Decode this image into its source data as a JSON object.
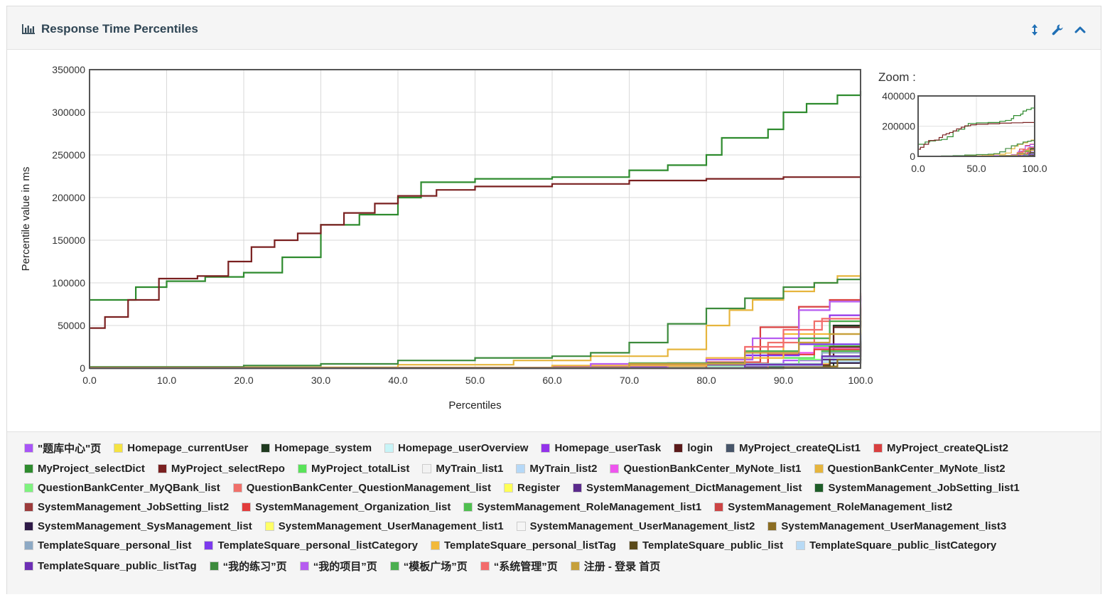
{
  "panel": {
    "title": "Response Time Percentiles",
    "icons": {
      "title": "bar-chart-icon",
      "tools": [
        "vertical-arrows-icon",
        "wrench-icon",
        "chevron-up-icon"
      ]
    }
  },
  "zoom": {
    "label": "Zoom :",
    "yticks": [
      "400000",
      "200000",
      "0"
    ],
    "xticks": [
      "0.0",
      "50.0",
      "100.0"
    ]
  },
  "chart_data": {
    "type": "line",
    "xlabel": "Percentiles",
    "ylabel": "Percentile value in ms",
    "xlim": [
      0,
      100
    ],
    "ylim": [
      0,
      350000
    ],
    "xticks": [
      "0.0",
      "10.0",
      "20.0",
      "30.0",
      "40.0",
      "50.0",
      "60.0",
      "70.0",
      "80.0",
      "90.0",
      "100.0"
    ],
    "yticks": [
      "0",
      "50000",
      "100000",
      "150000",
      "200000",
      "250000",
      "300000",
      "350000"
    ],
    "grid": true,
    "legend_position": "bottom",
    "series": [
      {
        "name": "\"题库中心\"页",
        "color": "#a855f7",
        "points": [
          [
            0,
            500
          ],
          [
            60,
            1500
          ],
          [
            80,
            4000
          ],
          [
            90,
            9000
          ],
          [
            95,
            14000
          ],
          [
            100,
            18000
          ]
        ]
      },
      {
        "name": "Homepage_currentUser",
        "color": "#f5e342",
        "points": [
          [
            0,
            300
          ],
          [
            70,
            1000
          ],
          [
            88,
            3000
          ],
          [
            95,
            6000
          ],
          [
            100,
            9000
          ]
        ]
      },
      {
        "name": "Homepage_system",
        "color": "#1f3a1f",
        "points": [
          [
            0,
            0
          ],
          [
            80,
            500
          ],
          [
            95,
            2000
          ],
          [
            96.5,
            50000
          ],
          [
            100,
            55000
          ]
        ]
      },
      {
        "name": "Homepage_userOverview",
        "color": "#c7f4f7",
        "points": [
          [
            0,
            300
          ],
          [
            80,
            1500
          ],
          [
            95,
            8000
          ],
          [
            100,
            12000
          ]
        ]
      },
      {
        "name": "Homepage_userTask",
        "color": "#9333ea",
        "points": [
          [
            0,
            500
          ],
          [
            60,
            2000
          ],
          [
            75,
            6000
          ],
          [
            85,
            15000
          ],
          [
            92,
            35000
          ],
          [
            96,
            62000
          ],
          [
            100,
            85000
          ]
        ]
      },
      {
        "name": "login",
        "color": "#5b1a1a",
        "points": [
          [
            0,
            0
          ],
          [
            85,
            2000
          ],
          [
            95,
            12000
          ],
          [
            96.5,
            48000
          ],
          [
            100,
            56000
          ]
        ]
      },
      {
        "name": "MyProject_createQList1",
        "color": "#475569",
        "points": [
          [
            0,
            0
          ],
          [
            85,
            3000
          ],
          [
            95,
            14000
          ],
          [
            100,
            40000
          ]
        ]
      },
      {
        "name": "MyProject_createQList2",
        "color": "#d94040",
        "points": [
          [
            0,
            200
          ],
          [
            70,
            3000
          ],
          [
            80,
            7000
          ],
          [
            87,
            48000
          ],
          [
            92,
            72000
          ],
          [
            96,
            80000
          ],
          [
            100,
            88000
          ]
        ]
      },
      {
        "name": "MyProject_selectDict",
        "color": "#2e8b2e",
        "points": [
          [
            0,
            80000
          ],
          [
            3,
            80000
          ],
          [
            6,
            95000
          ],
          [
            10,
            102000
          ],
          [
            15,
            107000
          ],
          [
            20,
            112000
          ],
          [
            25,
            130000
          ],
          [
            30,
            168000
          ],
          [
            35,
            180000
          ],
          [
            40,
            200000
          ],
          [
            43,
            218000
          ],
          [
            50,
            222000
          ],
          [
            60,
            224000
          ],
          [
            70,
            232000
          ],
          [
            75,
            238000
          ],
          [
            80,
            250000
          ],
          [
            82,
            270000
          ],
          [
            88,
            280000
          ],
          [
            90,
            300000
          ],
          [
            93,
            310000
          ],
          [
            97,
            320000
          ],
          [
            100,
            325000
          ]
        ]
      },
      {
        "name": "MyProject_selectRepo",
        "color": "#7a2020",
        "points": [
          [
            0,
            47000
          ],
          [
            2,
            60000
          ],
          [
            5,
            80000
          ],
          [
            9,
            105000
          ],
          [
            14,
            108000
          ],
          [
            18,
            125000
          ],
          [
            21,
            142000
          ],
          [
            24,
            150000
          ],
          [
            27,
            158000
          ],
          [
            30,
            168000
          ],
          [
            33,
            182000
          ],
          [
            37,
            193000
          ],
          [
            40,
            202000
          ],
          [
            45,
            209000
          ],
          [
            50,
            213000
          ],
          [
            60,
            216000
          ],
          [
            70,
            220000
          ],
          [
            80,
            222000
          ],
          [
            90,
            224000
          ],
          [
            100,
            225000
          ]
        ]
      },
      {
        "name": "MyProject_totalList",
        "color": "#59e359",
        "points": [
          [
            0,
            300
          ],
          [
            75,
            3000
          ],
          [
            88,
            12000
          ],
          [
            94,
            26000
          ],
          [
            100,
            45000
          ]
        ]
      },
      {
        "name": "MyTrain_list1",
        "color": "#f2f2f2",
        "points": [
          [
            0,
            200
          ],
          [
            90,
            2000
          ],
          [
            100,
            5000
          ]
        ]
      },
      {
        "name": "MyTrain_list2",
        "color": "#b5d8f7",
        "points": [
          [
            0,
            200
          ],
          [
            85,
            2000
          ],
          [
            95,
            7000
          ],
          [
            100,
            12000
          ]
        ]
      },
      {
        "name": "QuestionBankCenter_MyNote_list1",
        "color": "#ee55ee",
        "points": [
          [
            0,
            300
          ],
          [
            75,
            4000
          ],
          [
            88,
            18000
          ],
          [
            94,
            24000
          ],
          [
            100,
            30000
          ]
        ]
      },
      {
        "name": "QuestionBankCenter_MyNote_list2",
        "color": "#e6b53d",
        "points": [
          [
            0,
            1000
          ],
          [
            40,
            4000
          ],
          [
            55,
            9000
          ],
          [
            65,
            14000
          ],
          [
            75,
            22000
          ],
          [
            80,
            50000
          ],
          [
            83,
            68000
          ],
          [
            86,
            80000
          ],
          [
            90,
            90000
          ],
          [
            94,
            100000
          ],
          [
            97,
            108000
          ],
          [
            100,
            112000
          ]
        ]
      },
      {
        "name": "QuestionBankCenter_MyQBank_list",
        "color": "#7ef27e",
        "points": [
          [
            0,
            200
          ],
          [
            80,
            3000
          ],
          [
            92,
            10000
          ],
          [
            100,
            20000
          ]
        ]
      },
      {
        "name": "QuestionBankCenter_QuestionManagement_list",
        "color": "#f0706a",
        "points": [
          [
            0,
            300
          ],
          [
            80,
            6000
          ],
          [
            88,
            30000
          ],
          [
            94,
            55000
          ],
          [
            100,
            72000
          ]
        ]
      },
      {
        "name": "Register",
        "color": "#ffff55",
        "points": [
          [
            0,
            0
          ],
          [
            90,
            1000
          ],
          [
            100,
            3000
          ]
        ]
      },
      {
        "name": "SystemManagement_DictManagement_list",
        "color": "#5b2a8c",
        "points": [
          [
            0,
            0
          ],
          [
            85,
            2000
          ],
          [
            95,
            10000
          ],
          [
            100,
            22000
          ]
        ]
      },
      {
        "name": "SystemManagement_JobSetting_list1",
        "color": "#1e5d28",
        "points": [
          [
            0,
            0
          ],
          [
            88,
            2000
          ],
          [
            96,
            14000
          ],
          [
            100,
            30000
          ]
        ]
      },
      {
        "name": "SystemManagement_JobSetting_list2",
        "color": "#9c3b3b",
        "points": [
          [
            0,
            0
          ],
          [
            88,
            3000
          ],
          [
            96,
            20000
          ],
          [
            100,
            26000
          ]
        ]
      },
      {
        "name": "SystemManagement_Organization_list",
        "color": "#e23c3c",
        "points": [
          [
            0,
            300
          ],
          [
            80,
            4000
          ],
          [
            88,
            16000
          ],
          [
            94,
            22000
          ],
          [
            100,
            28000
          ]
        ]
      },
      {
        "name": "SystemManagement_RoleManagement_list1",
        "color": "#4fbf4f",
        "points": [
          [
            0,
            0
          ],
          [
            85,
            5000
          ],
          [
            95,
            20000
          ],
          [
            100,
            35000
          ]
        ]
      },
      {
        "name": "SystemManagement_RoleManagement_list2",
        "color": "#cc4444",
        "points": [
          [
            0,
            0
          ],
          [
            88,
            4000
          ],
          [
            96,
            18000
          ],
          [
            100,
            25000
          ]
        ]
      },
      {
        "name": "SystemManagement_SysManagement_list",
        "color": "#2e1a47",
        "points": [
          [
            0,
            0
          ],
          [
            90,
            1500
          ],
          [
            96,
            6000
          ],
          [
            100,
            14000
          ]
        ]
      },
      {
        "name": "SystemManagement_UserManagement_list1",
        "color": "#ffff66",
        "points": [
          [
            0,
            0
          ],
          [
            85,
            3000
          ],
          [
            95,
            12000
          ],
          [
            100,
            20000
          ]
        ]
      },
      {
        "name": "SystemManagement_UserManagement_list2",
        "color": "#f5f5f5",
        "points": [
          [
            0,
            0
          ],
          [
            90,
            2000
          ],
          [
            100,
            6000
          ]
        ]
      },
      {
        "name": "SystemManagement_UserManagement_list3",
        "color": "#8b6d23",
        "points": [
          [
            0,
            0
          ],
          [
            90,
            2000
          ],
          [
            97,
            10000
          ],
          [
            100,
            18000
          ]
        ]
      },
      {
        "name": "TemplateSquare_personal_list",
        "color": "#8da9c4",
        "points": [
          [
            0,
            200
          ],
          [
            85,
            5000
          ],
          [
            95,
            18000
          ],
          [
            100,
            38000
          ]
        ]
      },
      {
        "name": "TemplateSquare_personal_listCategory",
        "color": "#7c3aed",
        "points": [
          [
            0,
            200
          ],
          [
            70,
            4000
          ],
          [
            85,
            15000
          ],
          [
            92,
            28000
          ],
          [
            100,
            42000
          ]
        ]
      },
      {
        "name": "TemplateSquare_personal_listTag",
        "color": "#f2b93b",
        "points": [
          [
            0,
            200
          ],
          [
            60,
            3000
          ],
          [
            80,
            12000
          ],
          [
            90,
            40000
          ],
          [
            100,
            60000
          ]
        ]
      },
      {
        "name": "TemplateSquare_public_list",
        "color": "#5a4a1a",
        "points": [
          [
            0,
            0
          ],
          [
            90,
            3000
          ],
          [
            96,
            25000
          ],
          [
            100,
            32000
          ]
        ]
      },
      {
        "name": "TemplateSquare_public_listCategory",
        "color": "#b8daf5",
        "points": [
          [
            0,
            0
          ],
          [
            85,
            3000
          ],
          [
            95,
            12000
          ],
          [
            100,
            18000
          ]
        ]
      },
      {
        "name": "TemplateSquare_public_listTag",
        "color": "#6d2fb5",
        "points": [
          [
            0,
            0
          ],
          [
            85,
            4000
          ],
          [
            95,
            14000
          ],
          [
            100,
            24000
          ]
        ]
      },
      {
        "name": "“我的练习”页",
        "color": "#3d8b3d",
        "points": [
          [
            0,
            1500
          ],
          [
            20,
            3000
          ],
          [
            30,
            5000
          ],
          [
            40,
            9000
          ],
          [
            50,
            12000
          ],
          [
            60,
            14000
          ],
          [
            65,
            18000
          ],
          [
            70,
            30000
          ],
          [
            75,
            52000
          ],
          [
            80,
            70000
          ],
          [
            85,
            82000
          ],
          [
            90,
            95000
          ],
          [
            94,
            100000
          ],
          [
            97,
            104000
          ],
          [
            100,
            107000
          ]
        ]
      },
      {
        "name": "“我的项目”页",
        "color": "#b65cf0",
        "points": [
          [
            0,
            500
          ],
          [
            65,
            5000
          ],
          [
            80,
            10000
          ],
          [
            86,
            35000
          ],
          [
            92,
            68000
          ],
          [
            96,
            78000
          ],
          [
            100,
            82000
          ]
        ]
      },
      {
        "name": "“模板广场”页",
        "color": "#4caf50",
        "points": [
          [
            0,
            500
          ],
          [
            70,
            6000
          ],
          [
            85,
            20000
          ],
          [
            92,
            35000
          ],
          [
            96,
            55000
          ],
          [
            100,
            70000
          ]
        ]
      },
      {
        "name": "“系统管理”页",
        "color": "#f36b6b",
        "points": [
          [
            0,
            500
          ],
          [
            70,
            5000
          ],
          [
            85,
            25000
          ],
          [
            90,
            45000
          ],
          [
            95,
            58000
          ],
          [
            100,
            75000
          ]
        ]
      },
      {
        "name": "注册 - 登录   首页",
        "color": "#c6a03c",
        "points": [
          [
            0,
            300
          ],
          [
            70,
            5000
          ],
          [
            85,
            18000
          ],
          [
            92,
            30000
          ],
          [
            96,
            40000
          ],
          [
            100,
            50000
          ]
        ]
      }
    ]
  }
}
